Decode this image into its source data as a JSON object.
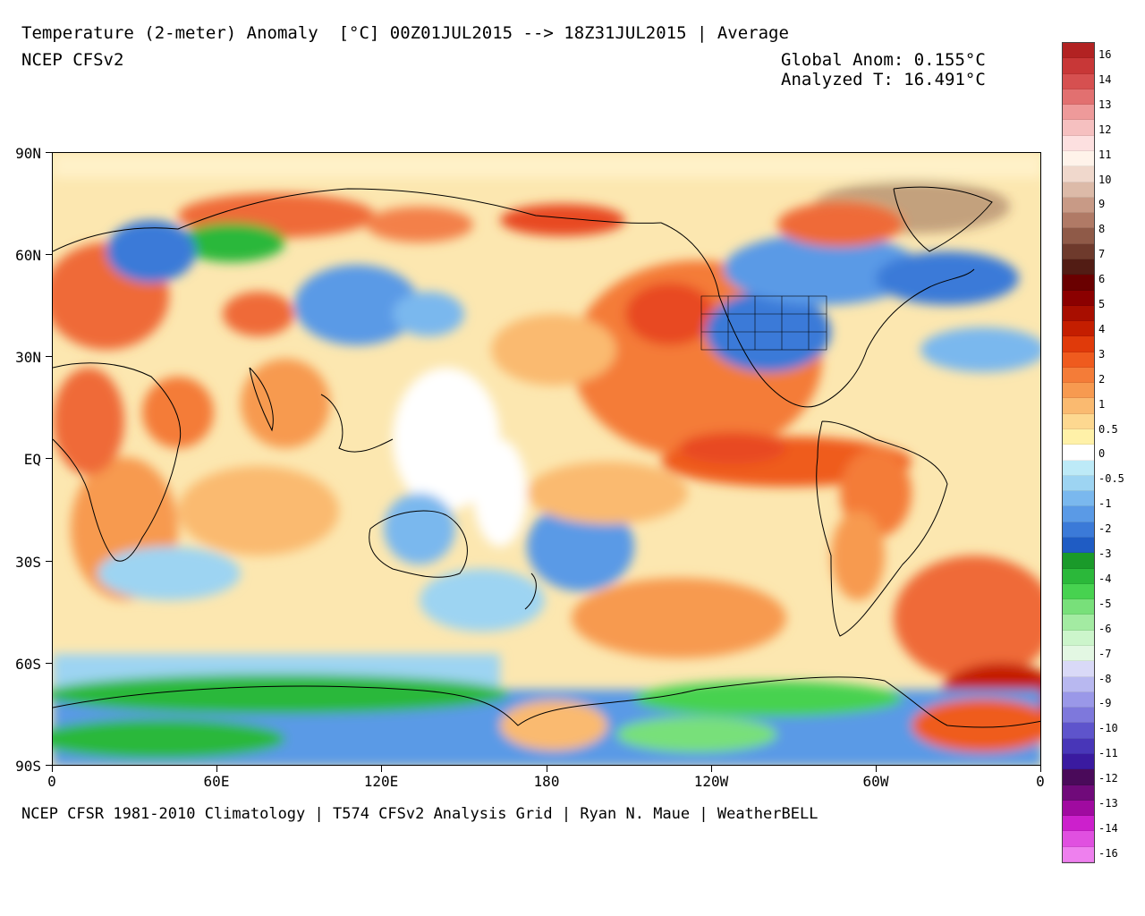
{
  "header": {
    "title": "Temperature (2-meter) Anomaly  [°C] 00Z01JUL2015 --> 18Z31JUL2015 | Average",
    "model": "NCEP CFSv2",
    "global_anom": "Global Anom: 0.155°C",
    "analyzed_t": "Analyzed T: 16.491°C"
  },
  "footer": {
    "credit": "NCEP CFSR 1981-2010 Climatology | T574 CFSv2 Analysis Grid | Ryan N. Maue | WeatherBELL"
  },
  "axes": {
    "lat_labels": [
      "90N",
      "60N",
      "30N",
      "EQ",
      "30S",
      "60S",
      "90S"
    ],
    "lon_labels": [
      "0",
      "60E",
      "120E",
      "180",
      "120W",
      "60W",
      "0"
    ]
  },
  "colorbar": {
    "labels": [
      "16",
      "14",
      "13",
      "12",
      "11",
      "10",
      "9",
      "8",
      "7",
      "6",
      "5",
      "4",
      "3",
      "2",
      "1",
      "0.5",
      "0",
      "-0.5",
      "-1",
      "-2",
      "-3",
      "-4",
      "-5",
      "-6",
      "-7",
      "-8",
      "-9",
      "-10",
      "-11",
      "-12",
      "-13",
      "-14",
      "-16"
    ],
    "colors": [
      "#b22222",
      "#c83737",
      "#d65050",
      "#e27070",
      "#ee9a9a",
      "#f6c0c0",
      "#fde0e0",
      "#fff3ea",
      "#f0d8cc",
      "#dcbaa8",
      "#c89a86",
      "#b07a66",
      "#8f5a48",
      "#6e3a2c",
      "#521c14",
      "#6a0000",
      "#8b0000",
      "#a80e00",
      "#c41e00",
      "#e03a0a",
      "#ef5b1e",
      "#f47c38",
      "#f79a50",
      "#faba70",
      "#fdd890",
      "#fff1a8",
      "#ffffff",
      "#bdeaf7",
      "#9dd4f2",
      "#7ab8ee",
      "#5a9ae6",
      "#3b7ad8",
      "#1f5cc4",
      "#1a9a2a",
      "#2bb83a",
      "#47d250",
      "#78e07a",
      "#a3eba2",
      "#ccf5cb",
      "#e3f7e3",
      "#d9d9f7",
      "#b8b8f0",
      "#9a98e8",
      "#7e78dc",
      "#5e54cc",
      "#4836b8",
      "#3a1aa0",
      "#4a0a5a",
      "#700a7a",
      "#a00aa0",
      "#cc20cc",
      "#e050e0",
      "#ee80ee"
    ]
  },
  "legend_title": ""
}
